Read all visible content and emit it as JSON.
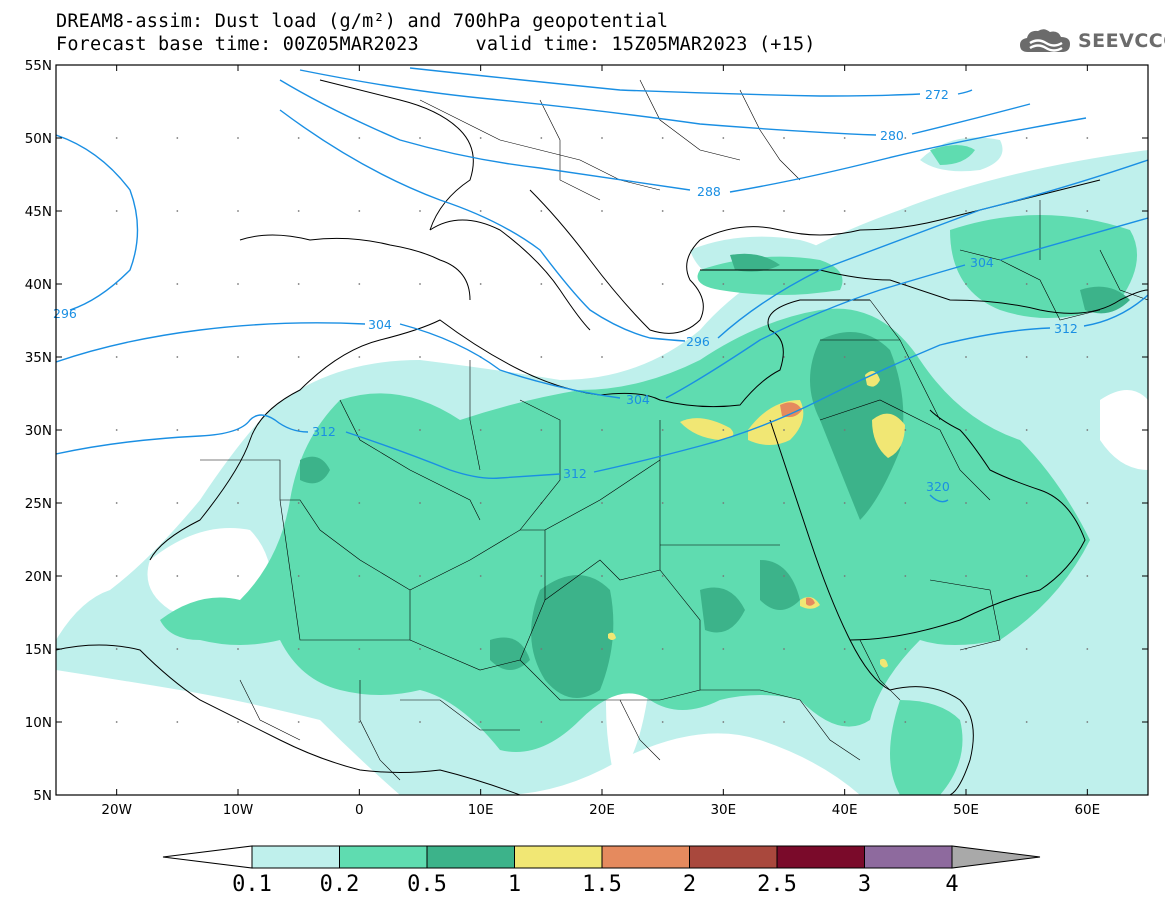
{
  "title": {
    "line1": "DREAM8-assim: Dust load (g/m²) and 700hPa geopotential",
    "line2": "Forecast base time: 00Z05MAR2023     valid time: 15Z05MAR2023 (+15)"
  },
  "logo": {
    "text": "SEEVCCC",
    "icon": "cloud-icon"
  },
  "map": {
    "lat_labels": [
      "55N",
      "50N",
      "45N",
      "40N",
      "35N",
      "30N",
      "25N",
      "20N",
      "15N",
      "10N",
      "5N"
    ],
    "lon_labels": [
      "20W",
      "10W",
      "0",
      "10E",
      "20E",
      "30E",
      "40E",
      "50E",
      "60E"
    ],
    "contours": [
      {
        "value": "272",
        "color": "#1a8fe3"
      },
      {
        "value": "280",
        "color": "#1a8fe3"
      },
      {
        "value": "288",
        "color": "#1a8fe3"
      },
      {
        "value": "296",
        "color": "#1a8fe3"
      },
      {
        "value": "304",
        "color": "#1a8fe3"
      },
      {
        "value": "312",
        "color": "#1a8fe3"
      },
      {
        "value": "320",
        "color": "#1a8fe3"
      }
    ]
  },
  "colorbar": {
    "labels": [
      "0.1",
      "0.2",
      "0.5",
      "1",
      "1.5",
      "2",
      "2.5",
      "3",
      "4"
    ],
    "colors": [
      "#ffffff",
      "#bff0ec",
      "#5fdcb0",
      "#3cb38a",
      "#f1e774",
      "#e58a5e",
      "#a9483d",
      "#7a0a2a",
      "#8e6a9e",
      "#a9a9a9"
    ]
  }
}
